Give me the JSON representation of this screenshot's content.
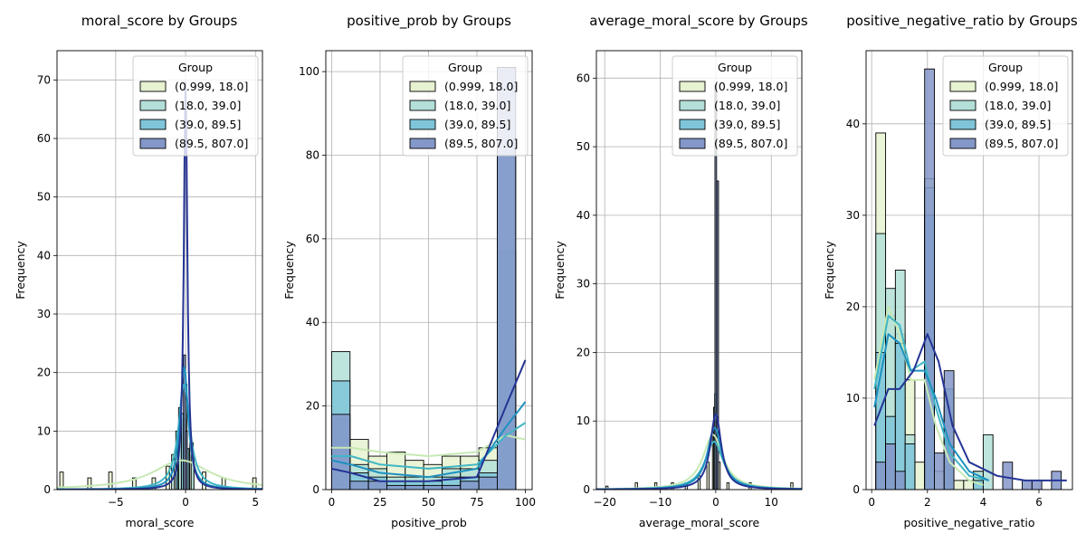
{
  "colors": {
    "groups": [
      "#e6f2d0",
      "#b3dfd8",
      "#7fc5d9",
      "#8497c9"
    ],
    "kde": [
      "#c7e9b4",
      "#41b6c4",
      "#1d91c0",
      "#253494"
    ]
  },
  "legend": {
    "title": "Group",
    "entries": [
      "(0.999, 18.0]",
      "(18.0, 39.0]",
      "(39.0, 89.5]",
      "(89.5, 807.0]"
    ],
    "placement": "upper-right"
  },
  "chart_data": [
    {
      "type": "histogram",
      "title": "moral_score by Groups",
      "xlabel": "moral_score",
      "ylabel": "Frequency",
      "xlim": [
        -9.2,
        5.5
      ],
      "ylim": [
        0,
        75
      ],
      "xticks": [
        -5,
        0,
        5
      ],
      "yticks": [
        0,
        10,
        20,
        30,
        40,
        50,
        60,
        70
      ],
      "grid": true,
      "bars": [
        {
          "group": 0,
          "x": -9.0,
          "w": 0.25,
          "h": 3
        },
        {
          "group": 0,
          "x": -7.0,
          "w": 0.25,
          "h": 2
        },
        {
          "group": 0,
          "x": -5.5,
          "w": 0.25,
          "h": 3
        },
        {
          "group": 0,
          "x": -3.8,
          "w": 0.25,
          "h": 2
        },
        {
          "group": 0,
          "x": -2.4,
          "w": 0.25,
          "h": 2
        },
        {
          "group": 0,
          "x": -1.4,
          "w": 0.25,
          "h": 4
        },
        {
          "group": 0,
          "x": -0.6,
          "w": 0.25,
          "h": 10
        },
        {
          "group": 0,
          "x": -0.2,
          "w": 0.25,
          "h": 12
        },
        {
          "group": 0,
          "x": 0.3,
          "w": 0.25,
          "h": 8
        },
        {
          "group": 0,
          "x": 1.2,
          "w": 0.25,
          "h": 3
        },
        {
          "group": 0,
          "x": 2.6,
          "w": 0.25,
          "h": 2
        },
        {
          "group": 0,
          "x": 4.8,
          "w": 0.25,
          "h": 2
        },
        {
          "group": 1,
          "x": -1.0,
          "w": 0.2,
          "h": 6
        },
        {
          "group": 1,
          "x": -0.5,
          "w": 0.2,
          "h": 14
        },
        {
          "group": 1,
          "x": -0.1,
          "w": 0.2,
          "h": 18
        },
        {
          "group": 1,
          "x": 0.4,
          "w": 0.2,
          "h": 6
        },
        {
          "group": 2,
          "x": -0.7,
          "w": 0.15,
          "h": 10
        },
        {
          "group": 2,
          "x": -0.3,
          "w": 0.15,
          "h": 13
        },
        {
          "group": 2,
          "x": 0.1,
          "w": 0.15,
          "h": 7
        },
        {
          "group": 3,
          "x": -0.15,
          "w": 0.15,
          "h": 23
        },
        {
          "group": 3,
          "x": 0.0,
          "w": 0.12,
          "h": 10
        }
      ],
      "kde": [
        {
          "group": 0,
          "peak": 5,
          "loc": -0.3,
          "scale": 2.5
        },
        {
          "group": 1,
          "peak": 18,
          "loc": -0.1,
          "scale": 0.5
        },
        {
          "group": 2,
          "peak": 21,
          "loc": -0.1,
          "scale": 0.35
        },
        {
          "group": 3,
          "peak": 70,
          "loc": 0.0,
          "scale": 0.15
        }
      ]
    },
    {
      "type": "histogram",
      "title": "positive_prob by Groups",
      "xlabel": "positive_prob",
      "ylabel": "Frequency",
      "xlim": [
        -3,
        103.5
      ],
      "ylim": [
        0,
        105
      ],
      "xticks": [
        0,
        25,
        50,
        75,
        100
      ],
      "yticks": [
        0,
        20,
        40,
        60,
        80,
        100
      ],
      "grid": true,
      "bars": [
        {
          "group": 0,
          "x": 0,
          "w": 9.5,
          "h": 17
        },
        {
          "group": 0,
          "x": 9.5,
          "w": 9.5,
          "h": 12
        },
        {
          "group": 0,
          "x": 19,
          "w": 9.5,
          "h": 8
        },
        {
          "group": 0,
          "x": 28.5,
          "w": 9.5,
          "h": 9
        },
        {
          "group": 0,
          "x": 38,
          "w": 9.5,
          "h": 7
        },
        {
          "group": 0,
          "x": 47.5,
          "w": 9.5,
          "h": 6
        },
        {
          "group": 0,
          "x": 57,
          "w": 9.5,
          "h": 8
        },
        {
          "group": 0,
          "x": 66.5,
          "w": 9.5,
          "h": 8
        },
        {
          "group": 0,
          "x": 76,
          "w": 9.5,
          "h": 10
        },
        {
          "group": 0,
          "x": 85.5,
          "w": 9.5,
          "h": 34
        },
        {
          "group": 1,
          "x": 0,
          "w": 9.5,
          "h": 33
        },
        {
          "group": 1,
          "x": 9.5,
          "w": 9.5,
          "h": 6
        },
        {
          "group": 1,
          "x": 19,
          "w": 9.5,
          "h": 5
        },
        {
          "group": 1,
          "x": 28.5,
          "w": 9.5,
          "h": 3
        },
        {
          "group": 1,
          "x": 38,
          "w": 9.5,
          "h": 3
        },
        {
          "group": 1,
          "x": 47.5,
          "w": 9.5,
          "h": 3
        },
        {
          "group": 1,
          "x": 57,
          "w": 9.5,
          "h": 5
        },
        {
          "group": 1,
          "x": 66.5,
          "w": 9.5,
          "h": 5
        },
        {
          "group": 1,
          "x": 76,
          "w": 9.5,
          "h": 7
        },
        {
          "group": 1,
          "x": 85.5,
          "w": 9.5,
          "h": 57
        },
        {
          "group": 2,
          "x": 0,
          "w": 9.5,
          "h": 26
        },
        {
          "group": 2,
          "x": 9.5,
          "w": 9.5,
          "h": 4
        },
        {
          "group": 2,
          "x": 19,
          "w": 9.5,
          "h": 3
        },
        {
          "group": 2,
          "x": 28.5,
          "w": 9.5,
          "h": 2
        },
        {
          "group": 2,
          "x": 38,
          "w": 9.5,
          "h": 2
        },
        {
          "group": 2,
          "x": 47.5,
          "w": 9.5,
          "h": 2
        },
        {
          "group": 2,
          "x": 57,
          "w": 9.5,
          "h": 3
        },
        {
          "group": 2,
          "x": 66.5,
          "w": 9.5,
          "h": 3
        },
        {
          "group": 2,
          "x": 76,
          "w": 9.5,
          "h": 4
        },
        {
          "group": 2,
          "x": 85.5,
          "w": 9.5,
          "h": 80
        },
        {
          "group": 3,
          "x": 0,
          "w": 9.5,
          "h": 18
        },
        {
          "group": 3,
          "x": 9.5,
          "w": 9.5,
          "h": 2
        },
        {
          "group": 3,
          "x": 19,
          "w": 9.5,
          "h": 2
        },
        {
          "group": 3,
          "x": 28.5,
          "w": 9.5,
          "h": 1
        },
        {
          "group": 3,
          "x": 38,
          "w": 9.5,
          "h": 1
        },
        {
          "group": 3,
          "x": 47.5,
          "w": 9.5,
          "h": 1
        },
        {
          "group": 3,
          "x": 57,
          "w": 9.5,
          "h": 1
        },
        {
          "group": 3,
          "x": 66.5,
          "w": 9.5,
          "h": 2
        },
        {
          "group": 3,
          "x": 76,
          "w": 9.5,
          "h": 3
        },
        {
          "group": 3,
          "x": 85.5,
          "w": 9.5,
          "h": 101
        }
      ],
      "kde": [
        {
          "group": 0,
          "curve": [
            [
              0,
              10
            ],
            [
              10,
              10
            ],
            [
              25,
              9
            ],
            [
              50,
              8
            ],
            [
              75,
              9
            ],
            [
              90,
              13
            ],
            [
              100,
              12
            ]
          ]
        },
        {
          "group": 1,
          "curve": [
            [
              0,
              8
            ],
            [
              10,
              8
            ],
            [
              25,
              6
            ],
            [
              50,
              5
            ],
            [
              75,
              6
            ],
            [
              90,
              13
            ],
            [
              100,
              16
            ]
          ]
        },
        {
          "group": 2,
          "curve": [
            [
              0,
              7
            ],
            [
              10,
              6
            ],
            [
              25,
              4
            ],
            [
              50,
              3
            ],
            [
              75,
              5
            ],
            [
              90,
              15
            ],
            [
              100,
              21
            ]
          ]
        },
        {
          "group": 3,
          "curve": [
            [
              0,
              5
            ],
            [
              10,
              4
            ],
            [
              25,
              2
            ],
            [
              50,
              2
            ],
            [
              75,
              3
            ],
            [
              90,
              20
            ],
            [
              100,
              31
            ]
          ]
        }
      ]
    },
    {
      "type": "histogram",
      "title": "average_moral_score by Groups",
      "xlabel": "average_moral_score",
      "ylabel": "Frequency",
      "xlim": [
        -21.5,
        15.5
      ],
      "ylim": [
        0,
        64
      ],
      "xticks": [
        -20,
        -10,
        0,
        10
      ],
      "yticks": [
        0,
        10,
        20,
        30,
        40,
        50,
        60
      ],
      "grid": true,
      "bars": [
        {
          "group": 0,
          "x": -19.8,
          "w": 0.4,
          "h": 0.5
        },
        {
          "group": 0,
          "x": -14.5,
          "w": 0.4,
          "h": 1
        },
        {
          "group": 0,
          "x": -11,
          "w": 0.4,
          "h": 1
        },
        {
          "group": 0,
          "x": -8,
          "w": 0.4,
          "h": 1
        },
        {
          "group": 0,
          "x": -5.5,
          "w": 0.4,
          "h": 1
        },
        {
          "group": 0,
          "x": -3.2,
          "w": 0.4,
          "h": 2
        },
        {
          "group": 0,
          "x": -1.6,
          "w": 0.4,
          "h": 4
        },
        {
          "group": 0,
          "x": -0.6,
          "w": 0.4,
          "h": 8
        },
        {
          "group": 0,
          "x": 0.4,
          "w": 0.4,
          "h": 4
        },
        {
          "group": 0,
          "x": 2,
          "w": 0.4,
          "h": 1
        },
        {
          "group": 0,
          "x": 6,
          "w": 0.4,
          "h": 1
        },
        {
          "group": 0,
          "x": 13.5,
          "w": 0.4,
          "h": 1
        },
        {
          "group": 1,
          "x": -0.4,
          "w": 0.3,
          "h": 12
        },
        {
          "group": 2,
          "x": -0.2,
          "w": 0.3,
          "h": 14
        },
        {
          "group": 3,
          "x": -0.15,
          "w": 0.3,
          "h": 59
        },
        {
          "group": 3,
          "x": 0.2,
          "w": 0.3,
          "h": 45
        }
      ],
      "kde": [
        {
          "group": 0,
          "peak": 8,
          "loc": -0.5,
          "scale": 2.2
        },
        {
          "group": 1,
          "peak": 7,
          "loc": -0.3,
          "scale": 2.0
        },
        {
          "group": 2,
          "peak": 9,
          "loc": -0.2,
          "scale": 1.6
        },
        {
          "group": 3,
          "peak": 11,
          "loc": 0.0,
          "scale": 1.2
        }
      ]
    },
    {
      "type": "histogram",
      "title": "positive_negative_ratio by Groups",
      "xlabel": "positive_negative_ratio",
      "ylabel": "Frequency",
      "xlim": [
        -0.2,
        7.2
      ],
      "ylim": [
        0,
        48
      ],
      "xticks": [
        0,
        2,
        4,
        6
      ],
      "yticks": [
        0,
        10,
        20,
        30,
        40
      ],
      "grid": true,
      "bars": [
        {
          "group": 0,
          "x": 0.15,
          "w": 0.35,
          "h": 39
        },
        {
          "group": 0,
          "x": 0.5,
          "w": 0.35,
          "h": 19
        },
        {
          "group": 0,
          "x": 0.85,
          "w": 0.35,
          "h": 17
        },
        {
          "group": 0,
          "x": 1.2,
          "w": 0.35,
          "h": 12
        },
        {
          "group": 0,
          "x": 1.55,
          "w": 0.35,
          "h": 3
        },
        {
          "group": 0,
          "x": 1.9,
          "w": 0.35,
          "h": 34
        },
        {
          "group": 0,
          "x": 2.25,
          "w": 0.35,
          "h": 2
        },
        {
          "group": 0,
          "x": 2.6,
          "w": 0.35,
          "h": 8
        },
        {
          "group": 0,
          "x": 2.95,
          "w": 0.35,
          "h": 1
        },
        {
          "group": 0,
          "x": 3.3,
          "w": 0.35,
          "h": 1
        },
        {
          "group": 0,
          "x": 3.65,
          "w": 0.35,
          "h": 2
        },
        {
          "group": 1,
          "x": 0.15,
          "w": 0.35,
          "h": 28
        },
        {
          "group": 1,
          "x": 0.5,
          "w": 0.35,
          "h": 22
        },
        {
          "group": 1,
          "x": 0.85,
          "w": 0.35,
          "h": 24
        },
        {
          "group": 1,
          "x": 1.2,
          "w": 0.35,
          "h": 6
        },
        {
          "group": 1,
          "x": 1.9,
          "w": 0.35,
          "h": 33
        },
        {
          "group": 1,
          "x": 2.6,
          "w": 0.35,
          "h": 9
        },
        {
          "group": 1,
          "x": 3.65,
          "w": 0.35,
          "h": 2
        },
        {
          "group": 1,
          "x": 4.0,
          "w": 0.35,
          "h": 6
        },
        {
          "group": 2,
          "x": 0.15,
          "w": 0.35,
          "h": 15
        },
        {
          "group": 2,
          "x": 0.5,
          "w": 0.35,
          "h": 8
        },
        {
          "group": 2,
          "x": 0.85,
          "w": 0.35,
          "h": 16
        },
        {
          "group": 2,
          "x": 1.2,
          "w": 0.35,
          "h": 5
        },
        {
          "group": 2,
          "x": 1.9,
          "w": 0.35,
          "h": 30
        },
        {
          "group": 2,
          "x": 2.6,
          "w": 0.35,
          "h": 11
        },
        {
          "group": 2,
          "x": 3.65,
          "w": 0.35,
          "h": 1
        },
        {
          "group": 3,
          "x": 0.15,
          "w": 0.35,
          "h": 3
        },
        {
          "group": 3,
          "x": 0.5,
          "w": 0.35,
          "h": 5
        },
        {
          "group": 3,
          "x": 0.85,
          "w": 0.35,
          "h": 2
        },
        {
          "group": 3,
          "x": 1.9,
          "w": 0.35,
          "h": 46
        },
        {
          "group": 3,
          "x": 2.25,
          "w": 0.35,
          "h": 4
        },
        {
          "group": 3,
          "x": 2.6,
          "w": 0.35,
          "h": 13
        },
        {
          "group": 3,
          "x": 4.7,
          "w": 0.35,
          "h": 3
        },
        {
          "group": 3,
          "x": 5.4,
          "w": 0.35,
          "h": 1
        },
        {
          "group": 3,
          "x": 5.75,
          "w": 0.35,
          "h": 1
        },
        {
          "group": 3,
          "x": 6.45,
          "w": 0.35,
          "h": 2
        }
      ],
      "kde": [
        {
          "group": 0,
          "curve": [
            [
              0.1,
              12
            ],
            [
              0.6,
              20
            ],
            [
              1.0,
              17
            ],
            [
              1.4,
              12
            ],
            [
              1.9,
              12
            ],
            [
              2.3,
              7
            ],
            [
              2.8,
              3
            ],
            [
              3.5,
              1
            ],
            [
              4.0,
              0.5
            ]
          ]
        },
        {
          "group": 1,
          "curve": [
            [
              0.1,
              11
            ],
            [
              0.6,
              19
            ],
            [
              1.0,
              18
            ],
            [
              1.4,
              13
            ],
            [
              1.9,
              14
            ],
            [
              2.3,
              9
            ],
            [
              2.8,
              4
            ],
            [
              3.5,
              1.5
            ],
            [
              4.2,
              1
            ]
          ]
        },
        {
          "group": 2,
          "curve": [
            [
              0.1,
              9
            ],
            [
              0.6,
              17
            ],
            [
              1.0,
              16
            ],
            [
              1.4,
              13
            ],
            [
              1.9,
              13
            ],
            [
              2.3,
              10
            ],
            [
              2.8,
              5
            ],
            [
              3.5,
              2
            ],
            [
              4.2,
              1
            ]
          ]
        },
        {
          "group": 3,
          "curve": [
            [
              0.1,
              7
            ],
            [
              0.6,
              11
            ],
            [
              1.0,
              11
            ],
            [
              1.5,
              13
            ],
            [
              2.0,
              17
            ],
            [
              2.4,
              14
            ],
            [
              2.9,
              7
            ],
            [
              3.5,
              3
            ],
            [
              4.5,
              1.5
            ],
            [
              5.5,
              1
            ],
            [
              6.5,
              1
            ],
            [
              7.0,
              1
            ]
          ]
        }
      ]
    }
  ]
}
